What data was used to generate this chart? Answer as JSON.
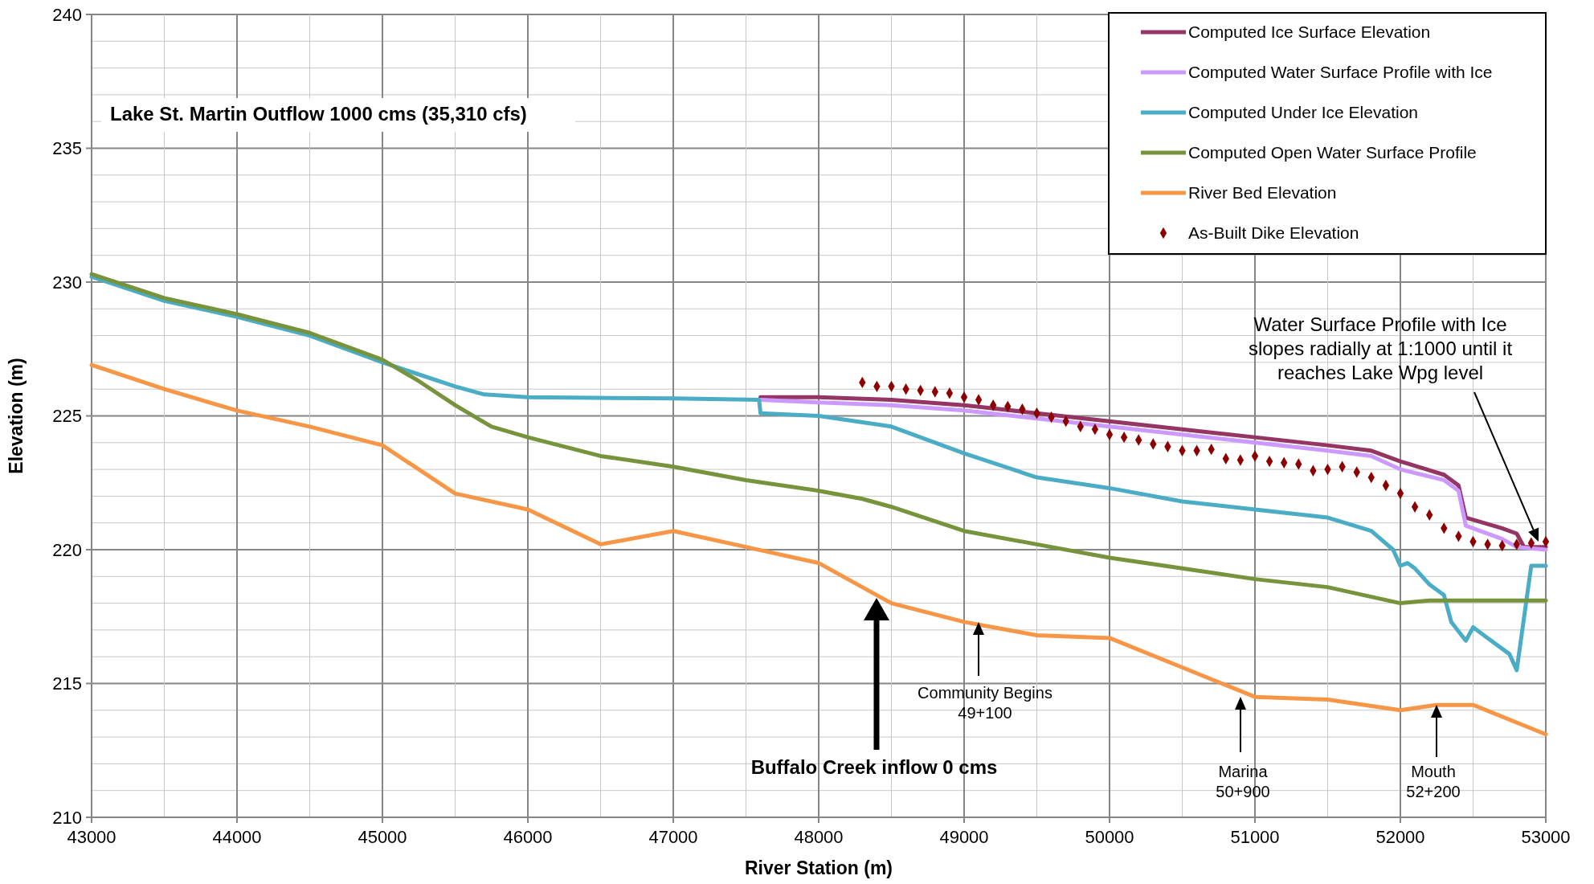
{
  "chart_data": {
    "type": "line",
    "title": "Lake St. Martin Outflow 1000 cms (35,310 cfs)",
    "xlabel": "River Station (m)",
    "ylabel": "Elevation (m)",
    "xlim": [
      43000,
      53000
    ],
    "ylim": [
      210,
      240
    ],
    "xticks": [
      43000,
      {
        "value": 43500,
        "label": null
      },
      44000,
      {
        "value": 44500,
        "label": null
      },
      45000,
      {
        "value": 45500,
        "label": null
      },
      46000,
      {
        "value": 46500,
        "label": null
      },
      47000,
      {
        "value": 47500,
        "label": null
      },
      48000,
      {
        "value": 48500,
        "label": null
      },
      49000,
      {
        "value": 49500,
        "label": null
      },
      50000,
      {
        "value": 50500,
        "label": null
      },
      51000,
      {
        "value": 51500,
        "label": null
      },
      52000,
      {
        "value": 52500,
        "label": null
      },
      53000
    ],
    "yticks": [
      210,
      {
        "value": 211,
        "label": null
      },
      {
        "value": 212,
        "label": null
      },
      {
        "value": 213,
        "label": null
      },
      {
        "value": 214,
        "label": null
      },
      215,
      {
        "value": 216,
        "label": null
      },
      {
        "value": 217,
        "label": null
      },
      {
        "value": 218,
        "label": null
      },
      {
        "value": 219,
        "label": null
      },
      220,
      {
        "value": 221,
        "label": null
      },
      {
        "value": 222,
        "label": null
      },
      {
        "value": 223,
        "label": null
      },
      {
        "value": 224,
        "label": null
      },
      225,
      {
        "value": 226,
        "label": null
      },
      {
        "value": 227,
        "label": null
      },
      {
        "value": 228,
        "label": null
      },
      {
        "value": 229,
        "label": null
      },
      230,
      {
        "value": 231,
        "label": null
      },
      {
        "value": 232,
        "label": null
      },
      {
        "value": 233,
        "label": null
      },
      {
        "value": 234,
        "label": null
      },
      235,
      {
        "value": 236,
        "label": null
      },
      {
        "value": 237,
        "label": null
      },
      {
        "value": 238,
        "label": null
      },
      {
        "value": 239,
        "label": null
      },
      240
    ],
    "grid": true,
    "legend": "top right",
    "line_style": "solid",
    "series": [
      {
        "name": "Computed Ice Surface Elevation",
        "color": "#953563",
        "x": [
          47600,
          48000,
          48500,
          49000,
          49500,
          50000,
          50500,
          51000,
          51500,
          51800,
          52000,
          52300,
          52400,
          52450,
          52700,
          52800,
          52850,
          53000
        ],
        "values": [
          225.7,
          225.7,
          225.6,
          225.4,
          225.1,
          224.8,
          224.5,
          224.2,
          223.9,
          223.7,
          223.3,
          222.8,
          222.4,
          221.2,
          220.8,
          220.6,
          220.1,
          220.1
        ]
      },
      {
        "name": "Computed Water Surface Profile with Ice",
        "color": "#cc99ff",
        "x": [
          47600,
          48000,
          48500,
          49000,
          49500,
          50000,
          50500,
          51000,
          51500,
          51800,
          52000,
          52300,
          52400,
          52450,
          52700,
          52800,
          53000
        ],
        "values": [
          225.6,
          225.5,
          225.4,
          225.2,
          224.9,
          224.6,
          224.3,
          224.0,
          223.7,
          223.5,
          223.0,
          222.6,
          222.2,
          220.9,
          220.4,
          220.1,
          220.0
        ]
      },
      {
        "name": "Computed Under Ice Elevation",
        "color": "#4bacc6",
        "x": [
          43000,
          43500,
          44000,
          44500,
          45000,
          45500,
          45700,
          46000,
          47000,
          47590,
          47600,
          48000,
          48500,
          49000,
          49500,
          50000,
          50500,
          51000,
          51500,
          51800,
          51950,
          52000,
          52050,
          52100,
          52200,
          52300,
          52350,
          52450,
          52500,
          52600,
          52750,
          52800,
          52900,
          53000
        ],
        "values": [
          230.2,
          229.3,
          228.7,
          228.0,
          227.0,
          226.1,
          225.8,
          225.7,
          225.65,
          225.6,
          225.1,
          225.0,
          224.6,
          223.6,
          222.7,
          222.3,
          221.8,
          221.5,
          221.2,
          220.7,
          220.0,
          219.4,
          219.5,
          219.3,
          218.7,
          218.3,
          217.3,
          216.6,
          217.1,
          216.7,
          216.1,
          215.5,
          219.4,
          219.4
        ]
      },
      {
        "name": "Computed Open Water Surface Profile",
        "color": "#77933c",
        "x": [
          43000,
          43500,
          44000,
          44500,
          45000,
          45250,
          45500,
          45750,
          46000,
          46500,
          47000,
          47500,
          48000,
          48300,
          48500,
          49000,
          49500,
          50000,
          50500,
          51000,
          51500,
          52000,
          52200,
          52500,
          53000
        ],
        "values": [
          230.3,
          229.4,
          228.8,
          228.1,
          227.1,
          226.3,
          225.4,
          224.6,
          224.2,
          223.5,
          223.1,
          222.6,
          222.2,
          221.9,
          221.6,
          220.7,
          220.2,
          219.7,
          219.3,
          218.9,
          218.6,
          218.0,
          218.1,
          218.1,
          218.1
        ]
      },
      {
        "name": "River Bed Elevation",
        "color": "#f79646",
        "x": [
          43000,
          43500,
          44000,
          44500,
          45000,
          45500,
          46000,
          46500,
          47000,
          47500,
          48000,
          48500,
          49000,
          49500,
          50000,
          50500,
          51000,
          51500,
          52000,
          52250,
          52500,
          53000
        ],
        "values": [
          226.9,
          226.0,
          225.2,
          224.6,
          223.9,
          222.1,
          221.5,
          220.2,
          220.7,
          220.1,
          219.5,
          218.0,
          217.3,
          216.8,
          216.7,
          215.6,
          214.5,
          214.4,
          214.0,
          214.2,
          214.2,
          213.1
        ]
      },
      {
        "name": "As-Built Dike Elevation",
        "type": "scatter",
        "marker": "diamond",
        "color": "#8b0000",
        "x": [
          48300,
          48400,
          48500,
          48600,
          48700,
          48800,
          48900,
          49000,
          49100,
          49200,
          49300,
          49400,
          49500,
          49600,
          49700,
          49800,
          49900,
          50000,
          50100,
          50200,
          50300,
          50400,
          50500,
          50600,
          50700,
          50800,
          50900,
          51000,
          51100,
          51200,
          51300,
          51400,
          51500,
          51600,
          51700,
          51800,
          51900,
          52000,
          52100,
          52200,
          52300,
          52400,
          52500,
          52600,
          52700,
          52800,
          52900,
          53000
        ],
        "values": [
          226.25,
          226.1,
          226.1,
          226.0,
          225.95,
          225.9,
          225.85,
          225.7,
          225.6,
          225.4,
          225.35,
          225.25,
          225.1,
          224.95,
          224.8,
          224.6,
          224.5,
          224.3,
          224.2,
          224.1,
          223.95,
          223.85,
          223.7,
          223.7,
          223.75,
          223.4,
          223.35,
          223.5,
          223.3,
          223.25,
          223.2,
          222.95,
          223.0,
          223.1,
          222.9,
          222.7,
          222.4,
          222.1,
          221.6,
          221.3,
          220.8,
          220.5,
          220.3,
          220.2,
          220.15,
          220.2,
          220.25,
          220.3
        ]
      }
    ],
    "annotations": [
      "Water Surface Profile with Ice\nslopes radially at 1:1000 until it\nreaches Lake Wpg level",
      "Community Begins\n49+100",
      "Marina\n50+900",
      "Mouth\n52+200",
      "Buffalo Creek inflow 0 cms"
    ]
  }
}
